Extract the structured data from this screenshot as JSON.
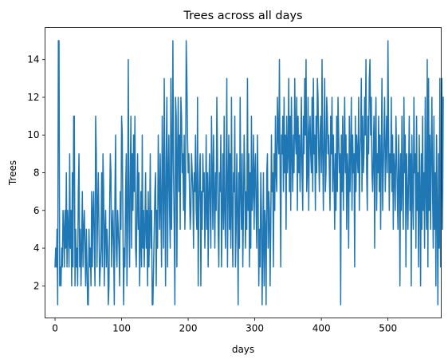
{
  "chart_data": {
    "type": "line",
    "title": "Trees across all days",
    "xlabel": "days",
    "ylabel": "Trees",
    "xlim": [
      -15,
      580
    ],
    "ylim": [
      0.3,
      15.7
    ],
    "xticks": [
      0,
      100,
      200,
      300,
      400,
      500
    ],
    "yticks": [
      2,
      4,
      6,
      8,
      10,
      12,
      14
    ],
    "grid": false,
    "line_color": "#1f77b4",
    "series": [
      {
        "x_start": 0,
        "x_step": 1,
        "values": [
          3,
          4,
          3,
          5,
          1,
          15,
          15,
          2,
          3,
          2,
          4,
          3,
          6,
          5,
          3,
          6,
          4,
          8,
          3,
          6,
          5,
          3,
          9,
          4,
          6,
          2,
          8,
          3,
          11,
          11,
          2,
          5,
          3,
          4,
          2,
          7,
          9,
          3,
          5,
          2,
          4,
          7,
          3,
          5,
          6,
          4,
          2,
          5,
          3,
          1,
          1,
          5,
          3,
          4,
          2,
          7,
          3,
          6,
          7,
          4,
          2,
          11,
          9,
          3,
          6,
          8,
          5,
          2,
          3,
          4,
          8,
          3,
          9,
          7,
          2,
          5,
          6,
          3,
          5,
          4,
          1,
          2,
          6,
          9,
          8,
          3,
          5,
          6,
          4,
          1,
          7,
          10,
          4,
          3,
          6,
          5,
          4,
          2,
          7,
          5,
          11,
          10,
          5,
          1,
          4,
          3,
          7,
          9,
          2,
          5,
          14,
          6,
          3,
          8,
          11,
          4,
          9,
          6,
          10,
          7,
          11,
          4,
          3,
          6,
          9,
          5,
          8,
          2,
          4,
          7,
          3,
          10,
          4,
          6,
          3,
          5,
          8,
          4,
          6,
          2,
          7,
          3,
          5,
          9,
          4,
          6,
          1,
          1,
          3,
          5,
          7,
          8,
          2,
          6,
          4,
          10,
          7,
          5,
          9,
          6,
          3,
          11,
          8,
          4,
          13,
          7,
          2,
          9,
          12,
          3,
          8,
          10,
          6,
          4,
          13,
          5,
          9,
          15,
          8,
          5,
          1,
          12,
          11,
          3,
          9,
          12,
          7,
          10,
          5,
          12,
          11,
          8,
          9,
          6,
          10,
          5,
          7,
          15,
          13,
          10,
          8,
          9,
          7,
          5,
          6,
          9,
          8,
          7,
          4,
          8,
          7,
          10,
          6,
          5,
          12,
          2,
          6,
          8,
          9,
          2,
          7,
          5,
          9,
          7,
          8,
          4,
          6,
          10,
          5,
          8,
          3,
          7,
          9,
          6,
          4,
          11,
          8,
          5,
          10,
          7,
          4,
          8,
          6,
          12,
          9,
          5,
          3,
          8,
          7,
          10,
          3,
          6,
          9,
          5,
          11,
          6,
          4,
          8,
          13,
          3,
          7,
          10,
          5,
          9,
          4,
          12,
          6,
          3,
          8,
          7,
          11,
          3,
          5,
          9,
          6,
          1,
          8,
          4,
          12,
          7,
          5,
          9,
          3,
          6,
          10,
          8,
          4,
          7,
          5,
          13,
          6,
          9,
          3,
          8,
          4,
          11,
          6,
          7,
          10,
          5,
          8,
          9,
          6,
          4,
          10,
          7,
          2,
          5,
          3,
          8,
          6,
          1,
          4,
          8,
          2,
          6,
          5,
          1,
          8,
          9,
          4,
          7,
          6,
          2,
          5,
          10,
          7,
          8,
          3,
          9,
          6,
          11,
          8,
          7,
          12,
          10,
          9,
          14,
          8,
          3,
          10,
          9,
          11,
          7,
          12,
          8,
          10,
          5,
          11,
          8,
          9,
          13,
          7,
          11,
          6,
          12,
          9,
          7,
          10,
          8,
          13,
          10,
          9,
          12,
          6,
          11,
          8,
          10,
          7,
          9,
          12,
          8,
          6,
          11,
          9,
          13,
          10,
          14,
          7,
          8,
          12,
          6,
          10,
          11,
          9,
          8,
          12,
          7,
          13,
          9,
          10,
          6,
          11,
          8,
          13,
          12,
          9,
          7,
          10,
          11,
          8,
          14,
          9,
          6,
          10,
          13,
          7,
          8,
          12,
          11,
          9,
          10,
          8,
          6,
          11,
          9,
          12,
          7,
          10,
          8,
          5,
          9,
          6,
          11,
          7,
          12,
          10,
          8,
          9,
          1,
          10,
          7,
          11,
          6,
          9,
          12,
          8,
          10,
          5,
          9,
          8,
          4,
          11,
          7,
          9,
          12,
          6,
          10,
          8,
          9,
          3,
          11,
          7,
          10,
          9,
          8,
          12,
          6,
          9,
          10,
          13,
          7,
          11,
          8,
          9,
          12,
          10,
          14,
          8,
          6,
          11,
          9,
          13,
          14,
          10,
          12,
          8,
          7,
          9,
          11,
          4,
          10,
          12,
          6,
          9,
          8,
          11,
          7,
          10,
          5,
          9,
          13,
          6,
          8,
          10,
          12,
          7,
          9,
          11,
          8,
          15,
          10,
          6,
          9,
          8,
          12,
          7,
          10,
          5,
          9,
          8,
          6,
          11,
          9,
          7,
          5,
          10,
          8,
          2,
          9,
          6,
          11,
          7,
          5,
          12,
          8,
          10,
          3,
          9,
          7,
          5,
          8,
          11,
          6,
          9,
          2,
          10,
          7,
          5,
          12,
          8,
          9,
          4,
          11,
          6,
          8,
          3,
          10,
          7,
          2,
          9,
          5,
          11,
          6,
          8,
          4,
          12,
          7,
          5,
          14,
          3,
          13,
          6,
          10,
          5,
          9,
          12,
          7,
          4,
          11,
          5,
          8,
          2,
          10,
          6,
          1,
          9,
          4,
          13,
          3,
          7,
          13,
          5,
          12
        ]
      }
    ]
  }
}
